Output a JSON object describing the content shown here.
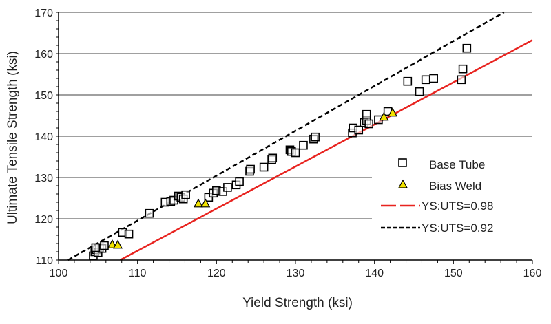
{
  "chart_data": {
    "type": "scatter",
    "title": "",
    "xlabel": "Yield Strength (ksi)",
    "ylabel": "Ultimate Tensile Strength (ksi)",
    "xlim": [
      100,
      160
    ],
    "ylim": [
      110,
      170
    ],
    "xticks": [
      100,
      110,
      120,
      130,
      140,
      150,
      160
    ],
    "yticks": [
      110,
      120,
      130,
      140,
      150,
      160,
      170
    ],
    "grid": "horizontal",
    "legend_position": "lower-right",
    "series": [
      {
        "name": "Base Tube",
        "marker": "square",
        "color": "#ffffff",
        "points": [
          [
            104.4,
            111
          ],
          [
            104.6,
            112
          ],
          [
            104.8,
            112.5
          ],
          [
            105.0,
            111.8
          ],
          [
            105.2,
            113
          ],
          [
            105.5,
            112.8
          ],
          [
            105.8,
            113.5
          ],
          [
            104.7,
            113
          ],
          [
            108.1,
            116.7
          ],
          [
            108.9,
            116.3
          ],
          [
            111.5,
            121.3
          ],
          [
            113.5,
            124
          ],
          [
            114.2,
            124.2
          ],
          [
            114.6,
            124.5
          ],
          [
            115.2,
            125.5
          ],
          [
            115.5,
            125.2
          ],
          [
            115.8,
            124.8
          ],
          [
            116.1,
            125.8
          ],
          [
            119.0,
            125.2
          ],
          [
            119.6,
            126.2
          ],
          [
            120.0,
            126.8
          ],
          [
            120.8,
            126.6
          ],
          [
            121.4,
            127.6
          ],
          [
            122.5,
            128.2
          ],
          [
            122.9,
            129
          ],
          [
            124.2,
            131.5
          ],
          [
            124.3,
            132
          ],
          [
            126.0,
            132.5
          ],
          [
            127.0,
            134.3
          ],
          [
            127.1,
            134.7
          ],
          [
            129.3,
            136.7
          ],
          [
            129.5,
            136.3
          ],
          [
            130.0,
            136
          ],
          [
            131.0,
            137.8
          ],
          [
            132.3,
            139.3
          ],
          [
            132.5,
            139.8
          ],
          [
            137.2,
            140.8
          ],
          [
            137.3,
            142
          ],
          [
            138.0,
            141.5
          ],
          [
            138.7,
            143.3
          ],
          [
            139.0,
            143.8
          ],
          [
            139.0,
            145.3
          ],
          [
            139.3,
            143
          ],
          [
            140.5,
            144
          ],
          [
            141.7,
            146
          ],
          [
            144.2,
            153.3
          ],
          [
            145.7,
            150.8
          ],
          [
            146.5,
            153.7
          ],
          [
            147.5,
            154
          ],
          [
            151.0,
            153.7
          ],
          [
            151.2,
            156.3
          ],
          [
            151.7,
            161.3
          ]
        ]
      },
      {
        "name": "Bias Weld",
        "marker": "triangle",
        "color": "#f2e300",
        "points": [
          [
            106.8,
            113.8
          ],
          [
            107.5,
            113.7
          ],
          [
            117.7,
            123.7
          ],
          [
            118.6,
            123.7
          ],
          [
            141.2,
            144.7
          ],
          [
            142.3,
            145.7
          ]
        ]
      },
      {
        "name": "YS:UTS=0.98",
        "type": "line",
        "style": "solid",
        "color": "#e8231f",
        "ratio": 0.98
      },
      {
        "name": "YS:UTS=0.92",
        "type": "line",
        "style": "dashed",
        "color": "#000000",
        "ratio": 0.92
      }
    ],
    "legend_labels": [
      "Base Tube",
      "Bias Weld",
      "YS:UTS=0.98",
      "YS:UTS=0.92"
    ]
  }
}
